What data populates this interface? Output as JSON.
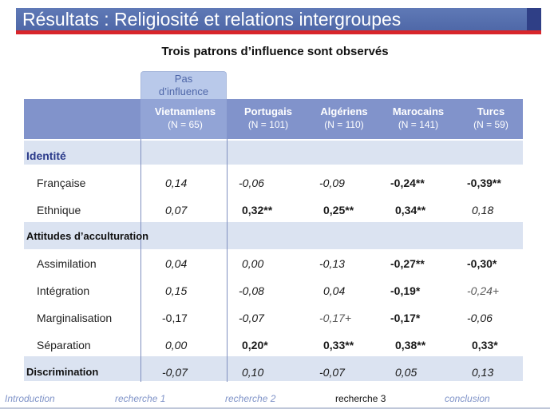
{
  "title": "Résultats : Religiosité et relations  intergroupes",
  "subtitle": "Trois patrons d’influence sont observés",
  "highlight_label_line1": "Pas",
  "highlight_label_line2": "d’influence",
  "columns": [
    {
      "name": "Vietnamiens",
      "n": "(N = 65)"
    },
    {
      "name": "Portugais",
      "n": "(N = 101)"
    },
    {
      "name": "Algériens",
      "n": "(N = 110)"
    },
    {
      "name": "Marocains",
      "n": "(N = 141)"
    },
    {
      "name": "Turcs",
      "n": "(N = 59)"
    }
  ],
  "sections": {
    "identite": "Identité",
    "attitudes": "Attitudes d’acculturation"
  },
  "rows": [
    {
      "label": "Française",
      "values": [
        "0,14",
        "-0,06",
        "-0,09",
        "-0,24**",
        "-0,39**"
      ]
    },
    {
      "label": "Ethnique",
      "values": [
        "0,07",
        "0,32**",
        "0,25**",
        "0,34**",
        "0,18"
      ]
    },
    {
      "label": "Assimilation",
      "values": [
        "0,04",
        "0,00",
        "-0,13",
        "-0,27**",
        "-0,30*"
      ]
    },
    {
      "label": "Intégration",
      "values": [
        "0,15",
        "-0,08",
        "0,04",
        "-0,19*",
        "-0,24+"
      ]
    },
    {
      "label": "Marginalisation",
      "values": [
        "-0,17",
        "-0,07",
        "-0,17+",
        "-0,17*",
        "-0,06"
      ]
    },
    {
      "label": "Séparation",
      "values": [
        "0,00",
        "0,20*",
        "0,33**",
        "0,38**",
        "0,33*"
      ]
    },
    {
      "label": "Discrimination",
      "values": [
        "-0,07",
        "0,10",
        "-0,07",
        "0,05",
        "0,13"
      ]
    }
  ],
  "nav": {
    "items": [
      "Introduction",
      "recherche 1",
      "recherche 2",
      "recherche 3",
      "conclusion"
    ],
    "active": "recherche 3"
  },
  "colors": {
    "banner_blue": "#5f79b6",
    "banner_red": "#d8262b",
    "header_bar": "#8193cb",
    "highlight": "#b9c9ea",
    "band": "#dbe3f1",
    "nav_link": "#7f93c8"
  }
}
